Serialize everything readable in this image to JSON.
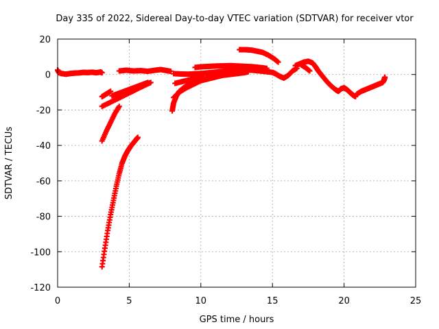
{
  "chart_data": {
    "type": "scatter",
    "title": "Day 335 of 2022, Sidereal Day-to-day VTEC variation (SDTVAR) for receiver vtor",
    "xlabel": "GPS time / hours",
    "ylabel": "SDTVAR / TECUs",
    "xlim": [
      0,
      25
    ],
    "ylim": [
      -120,
      20
    ],
    "xticks": [
      "0",
      "5",
      "10",
      "15",
      "20",
      "25"
    ],
    "yticks": [
      "20",
      "0",
      "-20",
      "-40",
      "-60",
      "-80",
      "-100",
      "-120"
    ],
    "grid": true,
    "marker": "plus",
    "color": "#ff0000",
    "series": [
      {
        "values": [
          [
            0.0,
            2.5
          ],
          [
            0.1,
            1.0
          ],
          [
            0.3,
            0.5
          ],
          [
            0.6,
            0.2
          ],
          [
            0.9,
            0.6
          ],
          [
            1.2,
            0.8
          ],
          [
            1.5,
            0.9
          ],
          [
            1.8,
            1.2
          ],
          [
            2.1,
            1.1
          ],
          [
            2.4,
            1.3
          ],
          [
            2.7,
            1.0
          ],
          [
            3.0,
            1.4
          ],
          [
            3.1,
            1.0
          ]
        ]
      },
      {
        "values": [
          [
            4.3,
            2.0
          ],
          [
            4.8,
            2.4
          ],
          [
            5.3,
            2.0
          ],
          [
            5.8,
            2.2
          ],
          [
            6.3,
            1.8
          ],
          [
            6.8,
            2.4
          ],
          [
            7.2,
            2.8
          ],
          [
            7.6,
            2.2
          ],
          [
            7.9,
            1.8
          ]
        ]
      },
      {
        "values": [
          [
            3.1,
            -12.5
          ],
          [
            3.4,
            -11.0
          ],
          [
            3.7,
            -9.5
          ]
        ]
      },
      {
        "values": [
          [
            3.8,
            -12.0
          ],
          [
            4.3,
            -10.5
          ],
          [
            4.8,
            -9.0
          ],
          [
            5.3,
            -7.5
          ],
          [
            5.8,
            -6.0
          ],
          [
            6.3,
            -4.5
          ]
        ]
      },
      {
        "values": [
          [
            3.1,
            -18.0
          ],
          [
            3.6,
            -16.0
          ],
          [
            4.1,
            -14.0
          ],
          [
            4.6,
            -12.0
          ],
          [
            5.1,
            -10.0
          ],
          [
            5.6,
            -8.0
          ],
          [
            6.1,
            -6.0
          ],
          [
            6.5,
            -4.5
          ]
        ]
      },
      {
        "values": [
          [
            3.1,
            -37.5
          ],
          [
            3.4,
            -32.0
          ],
          [
            3.7,
            -27.0
          ],
          [
            4.0,
            -22.0
          ],
          [
            4.3,
            -18.0
          ]
        ]
      },
      {
        "values": [
          [
            3.1,
            -108.5
          ],
          [
            3.3,
            -98.0
          ],
          [
            3.5,
            -88.0
          ],
          [
            3.7,
            -79.0
          ],
          [
            3.9,
            -71.0
          ],
          [
            4.1,
            -63.0
          ],
          [
            4.3,
            -56.0
          ],
          [
            4.5,
            -50.0
          ],
          [
            4.7,
            -46.0
          ],
          [
            4.9,
            -43.0
          ],
          [
            5.1,
            -40.5
          ],
          [
            5.3,
            -38.5
          ],
          [
            5.5,
            -36.5
          ],
          [
            5.6,
            -35.5
          ]
        ]
      },
      {
        "values": [
          [
            8.0,
            -20.5
          ],
          [
            8.1,
            -16.0
          ],
          [
            8.3,
            -12.0
          ],
          [
            8.5,
            -9.5
          ],
          [
            8.8,
            -7.5
          ],
          [
            9.1,
            -6.0
          ],
          [
            9.5,
            -4.5
          ],
          [
            10.0,
            -3.0
          ],
          [
            10.5,
            -2.0
          ],
          [
            11.0,
            -1.0
          ],
          [
            11.5,
            -0.5
          ],
          [
            12.0,
            0.0
          ],
          [
            12.5,
            0.5
          ],
          [
            13.0,
            1.0
          ],
          [
            13.3,
            1.5
          ]
        ]
      },
      {
        "values": [
          [
            8.1,
            -13.0
          ],
          [
            8.5,
            -10.0
          ],
          [
            9.0,
            -7.5
          ],
          [
            9.5,
            -5.5
          ],
          [
            10.0,
            -3.5
          ],
          [
            10.5,
            -2.5
          ],
          [
            11.0,
            -1.5
          ],
          [
            11.5,
            -0.5
          ]
        ]
      },
      {
        "values": [
          [
            8.2,
            -5.0
          ],
          [
            8.7,
            -4.0
          ],
          [
            9.2,
            -3.0
          ],
          [
            9.7,
            -2.0
          ],
          [
            10.2,
            -1.5
          ]
        ]
      },
      {
        "values": [
          [
            8.1,
            0.5
          ],
          [
            8.6,
            0.3
          ],
          [
            9.1,
            0.2
          ],
          [
            9.6,
            0.4
          ],
          [
            10.1,
            0.6
          ],
          [
            10.6,
            1.0
          ],
          [
            11.1,
            1.4
          ],
          [
            11.6,
            1.8
          ],
          [
            12.1,
            2.2
          ],
          [
            12.6,
            2.5
          ],
          [
            13.1,
            2.6
          ],
          [
            13.6,
            2.4
          ],
          [
            14.1,
            2.0
          ],
          [
            14.6,
            1.6
          ],
          [
            15.0,
            1.2
          ],
          [
            15.2,
            0.5
          ],
          [
            15.5,
            -1.0
          ],
          [
            15.8,
            -2.0
          ],
          [
            16.1,
            -0.5
          ],
          [
            16.4,
            2.0
          ],
          [
            16.7,
            3.5
          ]
        ]
      },
      {
        "values": [
          [
            9.6,
            4.0
          ],
          [
            10.1,
            4.4
          ],
          [
            10.6,
            4.6
          ],
          [
            11.1,
            4.8
          ],
          [
            11.6,
            4.9
          ],
          [
            12.1,
            5.0
          ],
          [
            12.6,
            4.8
          ],
          [
            13.1,
            4.6
          ],
          [
            13.6,
            4.4
          ],
          [
            14.1,
            4.0
          ],
          [
            14.6,
            3.5
          ]
        ]
      },
      {
        "values": [
          [
            12.7,
            14.0
          ],
          [
            13.1,
            14.0
          ],
          [
            13.5,
            13.8
          ],
          [
            13.9,
            13.2
          ],
          [
            14.3,
            12.5
          ],
          [
            14.7,
            11.0
          ],
          [
            15.1,
            9.0
          ],
          [
            15.4,
            7.0
          ]
        ]
      },
      {
        "values": [
          [
            16.6,
            5.0
          ],
          [
            16.9,
            6.0
          ],
          [
            17.2,
            7.0
          ],
          [
            17.5,
            7.5
          ],
          [
            17.8,
            6.5
          ],
          [
            18.0,
            4.5
          ],
          [
            18.2,
            2.0
          ],
          [
            18.5,
            -1.0
          ],
          [
            18.8,
            -4.0
          ],
          [
            19.1,
            -6.5
          ],
          [
            19.4,
            -8.5
          ],
          [
            19.6,
            -9.5
          ],
          [
            19.8,
            -8.0
          ],
          [
            20.0,
            -7.5
          ],
          [
            20.2,
            -8.5
          ],
          [
            20.4,
            -10.0
          ],
          [
            20.6,
            -11.5
          ],
          [
            20.8,
            -12.5
          ]
        ]
      },
      {
        "values": [
          [
            17.0,
            5.5
          ],
          [
            17.3,
            4.0
          ],
          [
            17.6,
            2.0
          ]
        ]
      },
      {
        "values": [
          [
            20.9,
            -11.0
          ],
          [
            21.2,
            -9.5
          ],
          [
            21.5,
            -8.5
          ],
          [
            21.8,
            -7.5
          ],
          [
            22.1,
            -6.5
          ],
          [
            22.4,
            -5.5
          ],
          [
            22.7,
            -4.5
          ],
          [
            22.8,
            -3.0
          ],
          [
            22.85,
            -1.5
          ]
        ]
      }
    ]
  }
}
